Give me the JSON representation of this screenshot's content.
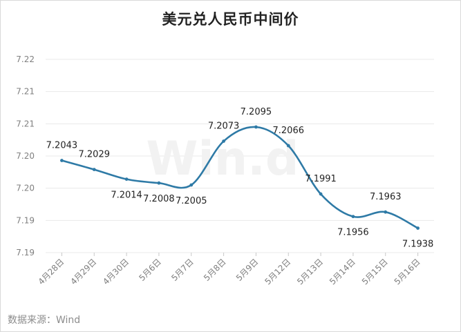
{
  "title": "美元兑人民币中间价",
  "source_label": "数据来源：",
  "source_value": "Wind",
  "watermark": "Win.d",
  "colors": {
    "line": "#2e7aa6",
    "grid": "#e8e8e8",
    "axis_text": "#7f7f7f",
    "label_text": "#222222",
    "watermark": "#f2f2f2"
  },
  "chart_data": {
    "type": "line",
    "title": "美元兑人民币中间价",
    "xlabel": "",
    "ylabel": "",
    "grid": true,
    "smooth": true,
    "categories": [
      "4月28日",
      "4月29日",
      "4月30日",
      "5月6日",
      "5月7日",
      "5月8日",
      "5月9日",
      "5月12日",
      "5月13日",
      "5月14日",
      "5月15日",
      "5月16日"
    ],
    "series": [
      {
        "values": [
          7.2043,
          7.2029,
          7.2014,
          7.2008,
          7.2005,
          7.2073,
          7.2095,
          7.2066,
          7.1991,
          7.1956,
          7.1963,
          7.1938
        ]
      }
    ],
    "ylim": [
      7.19,
      7.22
    ],
    "y_ticks": [
      7.19,
      7.195,
      7.2,
      7.205,
      7.21,
      7.215,
      7.22
    ],
    "y_tick_labels": [
      "7.19",
      "7.19",
      "7.20",
      "7.20",
      "7.21",
      "7.21",
      "7.22"
    ],
    "data_labels": [
      "7.2043",
      "7.2029",
      "7.2014",
      "7.2008",
      "7.2005",
      "7.2073",
      "7.2095",
      "7.2066",
      "7.1991",
      "7.1956",
      "7.1963",
      "7.1938"
    ]
  }
}
